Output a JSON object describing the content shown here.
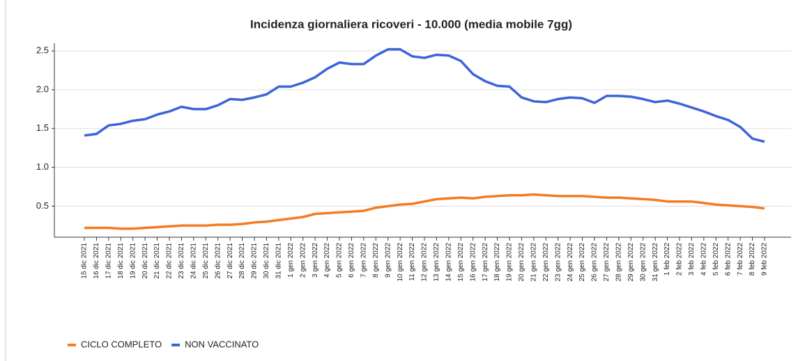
{
  "chart_data": {
    "type": "line",
    "title": "Incidenza giornaliera ricoveri - 10.000 (media mobile 7gg)",
    "categories": [
      "15 dic 2021",
      "16 dic 2021",
      "17 dic 2021",
      "18 dic 2021",
      "19 dic 2021",
      "20 dic 2021",
      "21 dic 2021",
      "22 dic 2021",
      "23 dic 2021",
      "24 dic 2021",
      "25 dic 2021",
      "26 dic 2021",
      "27 dic 2021",
      "28 dic 2021",
      "29 dic 2021",
      "30 dic 2021",
      "31 dic 2021",
      "1 gen 2022",
      "2 gen 2022",
      "3 gen 2022",
      "4 gen 2022",
      "5 gen 2022",
      "6 gen 2022",
      "7 gen 2022",
      "8 gen 2022",
      "9 gen 2022",
      "10 gen 2022",
      "11 gen 2022",
      "12 gen 2022",
      "13 gen 2022",
      "14 gen 2022",
      "15 gen 2022",
      "16 gen 2022",
      "17 gen 2022",
      "18 gen 2022",
      "19 gen 2022",
      "20 gen 2022",
      "21 gen 2022",
      "22 gen 2022",
      "23 gen 2022",
      "24 gen 2022",
      "25 gen 2022",
      "26 gen 2022",
      "27 gen 2022",
      "28 gen 2022",
      "29 gen 2022",
      "30 gen 2022",
      "31 gen 2022",
      "1 feb 2022",
      "2 feb 2022",
      "3 feb 2022",
      "4 feb 2022",
      "5 feb 2022",
      "6 feb 2022",
      "7 feb 2022",
      "8 feb 2022",
      "9 feb 2022"
    ],
    "series": [
      {
        "name": "CICLO COMPLETO",
        "color": "#f47b20",
        "values": [
          0.22,
          0.22,
          0.22,
          0.21,
          0.21,
          0.22,
          0.23,
          0.24,
          0.25,
          0.25,
          0.25,
          0.26,
          0.26,
          0.27,
          0.29,
          0.3,
          0.32,
          0.34,
          0.36,
          0.4,
          0.41,
          0.42,
          0.43,
          0.44,
          0.48,
          0.5,
          0.52,
          0.53,
          0.56,
          0.59,
          0.6,
          0.61,
          0.6,
          0.62,
          0.63,
          0.64,
          0.64,
          0.65,
          0.64,
          0.63,
          0.63,
          0.63,
          0.62,
          0.61,
          0.61,
          0.6,
          0.59,
          0.58,
          0.56,
          0.56,
          0.56,
          0.54,
          0.52,
          0.51,
          0.5,
          0.49,
          0.47
        ]
      },
      {
        "name": "NON VACCINATO",
        "color": "#3c64d8",
        "values": [
          1.41,
          1.43,
          1.54,
          1.56,
          1.6,
          1.62,
          1.68,
          1.72,
          1.78,
          1.75,
          1.75,
          1.8,
          1.88,
          1.87,
          1.9,
          1.94,
          2.04,
          2.04,
          2.09,
          2.16,
          2.27,
          2.35,
          2.33,
          2.33,
          2.44,
          2.52,
          2.52,
          2.43,
          2.41,
          2.45,
          2.44,
          2.37,
          2.2,
          2.11,
          2.05,
          2.04,
          1.9,
          1.85,
          1.84,
          1.88,
          1.9,
          1.89,
          1.83,
          1.92,
          1.92,
          1.91,
          1.88,
          1.84,
          1.86,
          1.82,
          1.77,
          1.72,
          1.66,
          1.61,
          1.52,
          1.37,
          1.33
        ]
      }
    ],
    "ylim": [
      0.1,
      2.6
    ],
    "yticks": [
      0.5,
      {
        "value": 1,
        "label": "1.0"
      },
      1.5,
      {
        "value": 2,
        "label": "2.0"
      },
      2.5
    ],
    "grid": true,
    "legend": "bottom-left"
  }
}
